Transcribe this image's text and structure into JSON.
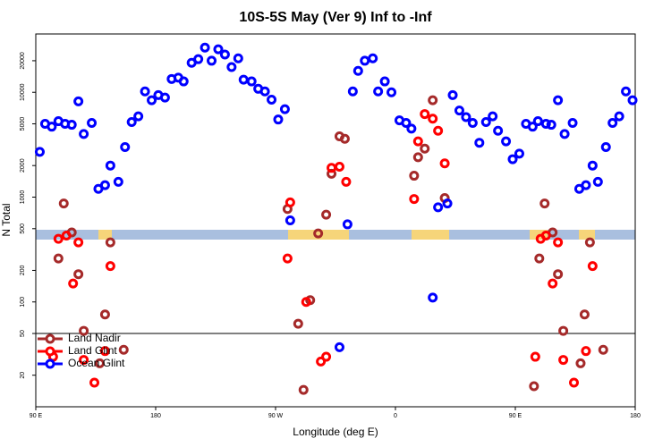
{
  "chart_data": {
    "type": "scatter",
    "title": "10S-5S May (Ver 9)   Inf to -Inf",
    "xlabel": "Longitude (deg E)",
    "ylabel": "N Total",
    "xlim": [
      90,
      540
    ],
    "xticks": [
      {
        "value": 90,
        "label": "90 E"
      },
      {
        "value": 180,
        "label": "180"
      },
      {
        "value": 270,
        "label": "90 W"
      },
      {
        "value": 360,
        "label": "0"
      },
      {
        "value": 450,
        "label": "90 E"
      },
      {
        "value": 540,
        "label": "180"
      }
    ],
    "ylim": [
      10,
      36000
    ],
    "yscale": "log",
    "yticks": [
      20,
      50,
      100,
      200,
      500,
      1000,
      2000,
      5000,
      10000,
      20000
    ],
    "hlines": [
      50
    ],
    "legend": "lower left",
    "series": [
      {
        "name": "Land Nadir",
        "color": "#a52a2a",
        "x": [
          107,
          111,
          117,
          122,
          126,
          138,
          142,
          146,
          156,
          279,
          287,
          291,
          296,
          302,
          308,
          312,
          318,
          322,
          374,
          377,
          382,
          388,
          397,
          464,
          468,
          472,
          478,
          482,
          486,
          499,
          502,
          506,
          516
        ],
        "values": [
          260,
          870,
          460,
          184,
          53,
          26,
          76,
          370,
          35,
          770,
          62,
          14.5,
          104,
          450,
          680,
          1670,
          3800,
          3600,
          1600,
          2400,
          2900,
          8400,
          980,
          15.7,
          260,
          870,
          460,
          184,
          53,
          26,
          76,
          370,
          35
        ]
      },
      {
        "name": "Land Glint",
        "color": "#ff0000",
        "x": [
          103,
          107,
          113,
          118,
          122,
          126,
          134,
          142,
          146,
          279,
          281,
          293,
          304,
          308,
          312,
          318,
          323,
          374,
          377,
          382,
          388,
          392,
          397,
          465,
          469,
          473,
          478,
          482,
          486,
          494,
          503,
          508
        ],
        "values": [
          30,
          400,
          430,
          150,
          370,
          28,
          17,
          34,
          220,
          260,
          890,
          100,
          27,
          30,
          1900,
          1950,
          1400,
          960,
          3400,
          6200,
          5600,
          4300,
          2100,
          30,
          400,
          430,
          150,
          370,
          28,
          17,
          34,
          220
        ]
      },
      {
        "name": "Ocean Glint",
        "color": "#0000ff",
        "x": [
          93,
          97,
          102,
          107,
          112,
          117,
          122,
          126,
          132,
          137,
          142,
          146,
          152,
          157,
          162,
          167,
          172,
          177,
          182,
          187,
          192,
          197,
          201,
          207,
          212,
          217,
          222,
          227,
          232,
          237,
          242,
          246,
          252,
          257,
          262,
          267,
          272,
          277,
          281,
          318,
          324,
          328,
          332,
          337,
          343,
          347,
          352,
          357,
          363,
          368,
          372,
          388,
          392,
          399,
          403,
          408,
          413,
          418,
          423,
          428,
          433,
          437,
          443,
          448,
          453,
          458,
          463,
          467,
          473,
          477,
          482,
          487,
          493,
          498,
          503,
          508,
          512,
          518,
          523,
          528,
          533,
          538
        ],
        "values": [
          2700,
          5000,
          4700,
          5300,
          5000,
          4900,
          8200,
          4000,
          5100,
          1200,
          1300,
          2000,
          1400,
          3000,
          5200,
          5900,
          10200,
          8400,
          9400,
          8900,
          13400,
          13800,
          12700,
          19100,
          20700,
          26700,
          20000,
          25700,
          22900,
          17400,
          21100,
          13200,
          12700,
          10800,
          10200,
          8500,
          5500,
          6900,
          600,
          37,
          550,
          10200,
          16000,
          20000,
          21100,
          10200,
          12700,
          10000,
          5400,
          5100,
          4500,
          110,
          800,
          870,
          9400,
          6700,
          5800,
          5100,
          3300,
          5200,
          5900,
          4300,
          3400,
          2300,
          2600,
          5000,
          4700,
          5300,
          5000,
          4900,
          8400,
          4000,
          5100,
          1200,
          1300,
          2000,
          1400,
          3000,
          5100,
          5900,
          10200,
          8400
        ]
      }
    ]
  }
}
